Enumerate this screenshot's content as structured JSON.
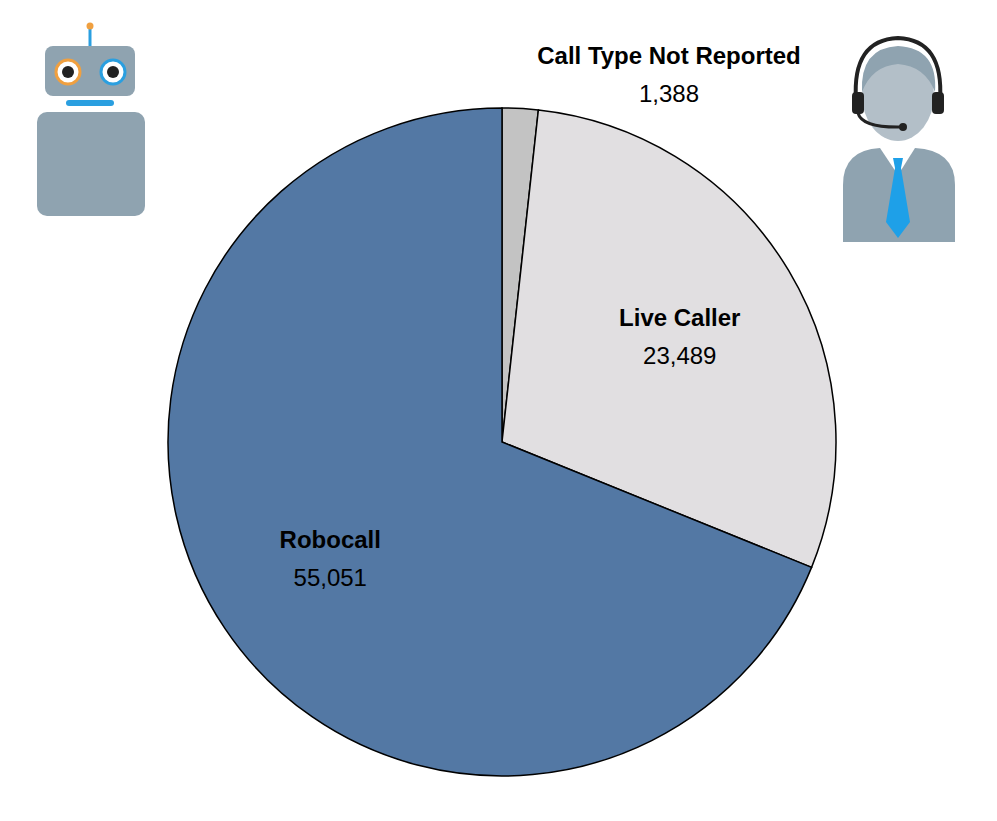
{
  "chart_data": {
    "type": "pie",
    "categories": [
      "Call Type Not Reported",
      "Live Caller",
      "Robocall"
    ],
    "values": [
      1388,
      23489,
      55051
    ],
    "value_labels": [
      "1,388",
      "23,489",
      "55,051"
    ],
    "colors": [
      "#c3c3c3",
      "#e1dfe1",
      "#5378a4"
    ],
    "data_labels": true
  }
}
